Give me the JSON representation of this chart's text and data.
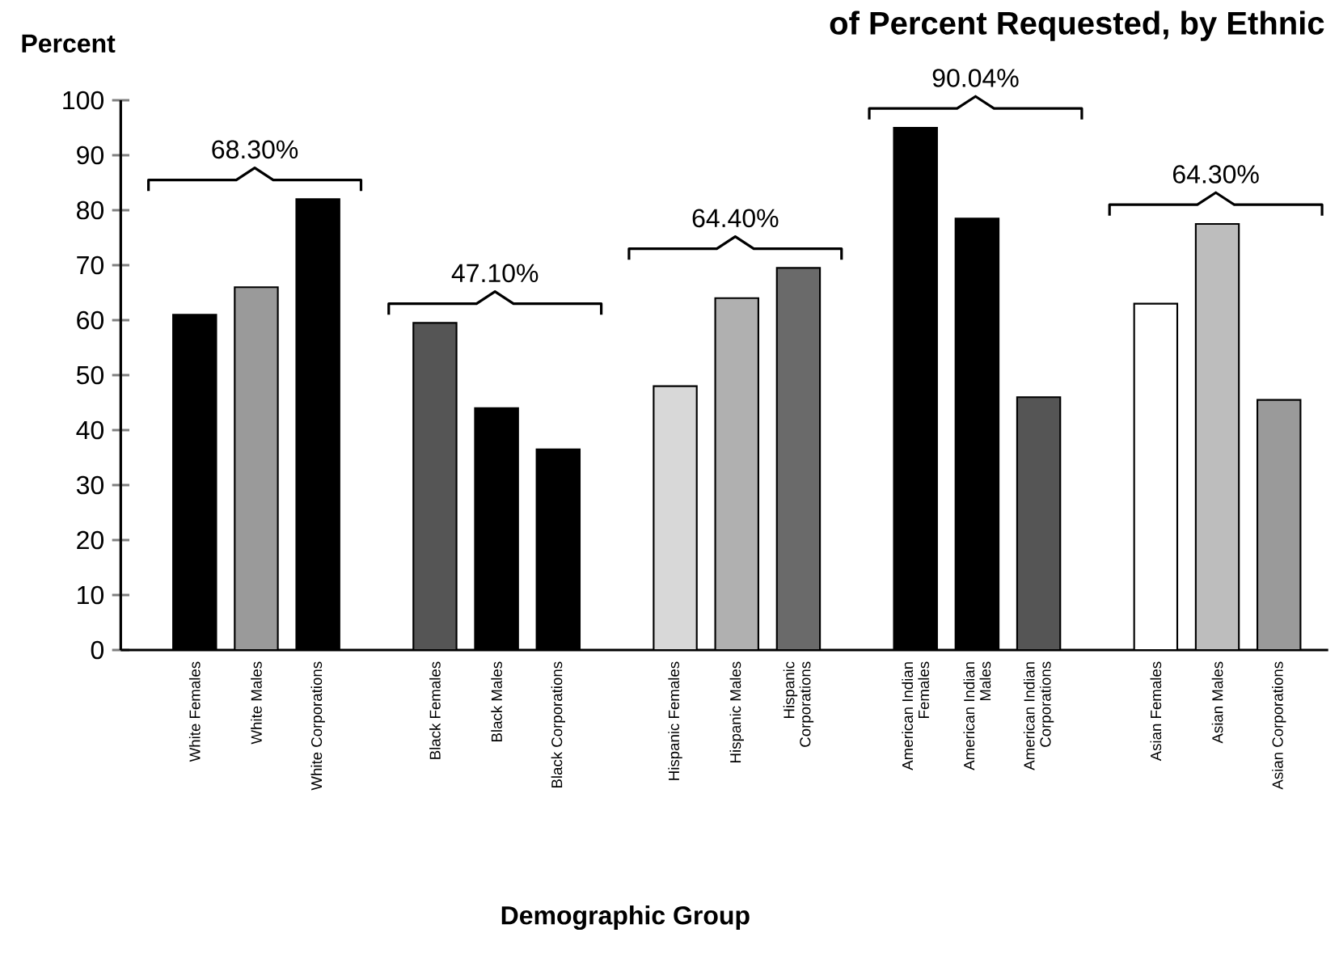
{
  "chart_data": {
    "type": "bar",
    "title": "of Percent Requested, by Ethnic",
    "xlabel": "Demographic Group",
    "ylabel": "Percent",
    "categories": [
      "White Females",
      "White Males",
      "White Corporations",
      "Black Females",
      "Black Males",
      "Black Corporations",
      "Hispanic Females",
      "Hispanic Males",
      "Hispanic Corporations",
      "American Indian Females",
      "American Indian Males",
      "American Indian Corporations",
      "Asian Females",
      "Asian Males",
      "Asian Corporations"
    ],
    "values": [
      61,
      66,
      82,
      59.5,
      44,
      36.5,
      48,
      64,
      69.5,
      95,
      78.5,
      46,
      63,
      77.5,
      45.5
    ],
    "colors": [
      "#000000",
      "#9a9a9a",
      "#000000",
      "#555555",
      "#000000",
      "#000000",
      "#d8d8d8",
      "#b0b0b0",
      "#6a6a6a",
      "#000000",
      "#000000",
      "#555555",
      "#ffffff",
      "#bdbdbd",
      "#9a9a9a"
    ],
    "annotations": [
      "68.30%",
      "47.10%",
      "64.40%",
      "90.04%",
      "64.30%"
    ],
    "ylim": [
      0,
      100
    ],
    "yticks": [
      0,
      10,
      20,
      30,
      40,
      50,
      60,
      70,
      80,
      90,
      100
    ],
    "grid": false
  }
}
